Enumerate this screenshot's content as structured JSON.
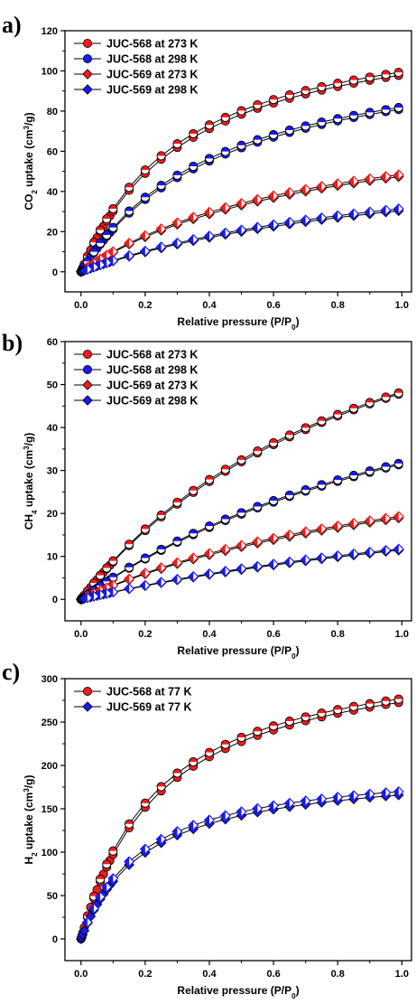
{
  "chart_data": [
    {
      "panel": "a)",
      "type": "scatter",
      "xlabel": {
        "main": "Relative pressure (P/P",
        "sub": "0",
        "end": ")"
      },
      "ylabel": {
        "pre": "CO",
        "sub": "2",
        "mid": " uptake (cm",
        "sup": "3",
        "end": "/g)"
      },
      "xlim": [
        -0.05,
        1.03
      ],
      "ylim": [
        -10,
        120
      ],
      "xticks": [
        0.0,
        0.2,
        0.4,
        0.6,
        0.8,
        1.0
      ],
      "xtick_labels": [
        "0.0",
        "0.2",
        "0.4",
        "0.6",
        "0.8",
        "1.0"
      ],
      "yticks": [
        0,
        20,
        40,
        60,
        80,
        100,
        120
      ],
      "ytick_labels": [
        "0",
        "20",
        "40",
        "60",
        "80",
        "100",
        "120"
      ],
      "legend_position": "top-left",
      "series": [
        {
          "name": "JUC-568 at 273 K",
          "marker": "circle",
          "color": "#ee1c1c",
          "ads_max": 98,
          "des_max": 99.5,
          "k": 3.0
        },
        {
          "name": "JUC-568 at 298 K",
          "marker": "circle",
          "color": "#1a1aee",
          "ads_max": 81,
          "des_max": 82,
          "k": 2.2
        },
        {
          "name": "JUC-569 at 273 K",
          "marker": "diamond",
          "color": "#ee1c1c",
          "ads_max": 47.5,
          "des_max": 48.5,
          "k": 1.3
        },
        {
          "name": "JUC-569 at 298 K",
          "marker": "diamond",
          "color": "#1a1aee",
          "ads_max": 30.5,
          "des_max": 31.5,
          "k": 0.9
        }
      ]
    },
    {
      "panel": "b)",
      "type": "scatter",
      "xlabel": {
        "main": "Relative pressure (P/P",
        "sub": "0",
        "end": ")"
      },
      "ylabel": {
        "pre": "CH",
        "sub": "4",
        "mid": " uptake (cm",
        "sup": "3",
        "end": "/g)"
      },
      "xlim": [
        -0.05,
        1.03
      ],
      "ylim": [
        -5,
        60
      ],
      "xticks": [
        0.0,
        0.2,
        0.4,
        0.6,
        0.8,
        1.0
      ],
      "xtick_labels": [
        "0.0",
        "0.2",
        "0.4",
        "0.6",
        "0.8",
        "1.0"
      ],
      "yticks": [
        0,
        10,
        20,
        30,
        40,
        50,
        60
      ],
      "ytick_labels": [
        "0",
        "10",
        "20",
        "30",
        "40",
        "50",
        "60"
      ],
      "legend_position": "top-left",
      "series": [
        {
          "name": "JUC-568 at 273 K",
          "marker": "circle",
          "color": "#ee1c1c",
          "ads_max": 48,
          "des_max": 48.3,
          "k": 1.0
        },
        {
          "name": "JUC-568 at 298 K",
          "marker": "circle",
          "color": "#1a1aee",
          "ads_max": 31.5,
          "des_max": 31.8,
          "k": 0.7
        },
        {
          "name": "JUC-569 at 273 K",
          "marker": "diamond",
          "color": "#ee1c1c",
          "ads_max": 19,
          "des_max": 19.4,
          "k": 0.8
        },
        {
          "name": "JUC-569 at 298 K",
          "marker": "diamond",
          "color": "#1a1aee",
          "ads_max": 11.5,
          "des_max": 11.8,
          "k": 0.5
        }
      ]
    },
    {
      "panel": "c)",
      "type": "scatter",
      "xlabel": {
        "main": "Relative pressure (P/P",
        "sub": "0",
        "end": ")"
      },
      "ylabel": {
        "pre": "H",
        "sub": "2",
        "mid": " uptake (cm",
        "sup": "3",
        "end": "/g)"
      },
      "xlim": [
        -0.05,
        1.03
      ],
      "ylim": [
        -25,
        300
      ],
      "xticks": [
        0.0,
        0.2,
        0.4,
        0.6,
        0.8,
        1.0
      ],
      "xtick_labels": [
        "0.0",
        "0.2",
        "0.4",
        "0.6",
        "0.8",
        "1.0"
      ],
      "yticks": [
        0,
        50,
        100,
        150,
        200,
        250,
        300
      ],
      "ytick_labels": [
        "0",
        "50",
        "100",
        "150",
        "200",
        "250",
        "300"
      ],
      "legend_position": "top-left",
      "series": [
        {
          "name": "JUC-568 at 77 K",
          "marker": "circle",
          "color": "#ee1c1c",
          "ads_max": 273,
          "des_max": 277,
          "k": 4.0
        },
        {
          "name": "JUC-569 at 77 K",
          "marker": "diamond",
          "color": "#1a1aee",
          "ads_max": 166,
          "des_max": 170,
          "k": 5.0
        }
      ]
    }
  ]
}
